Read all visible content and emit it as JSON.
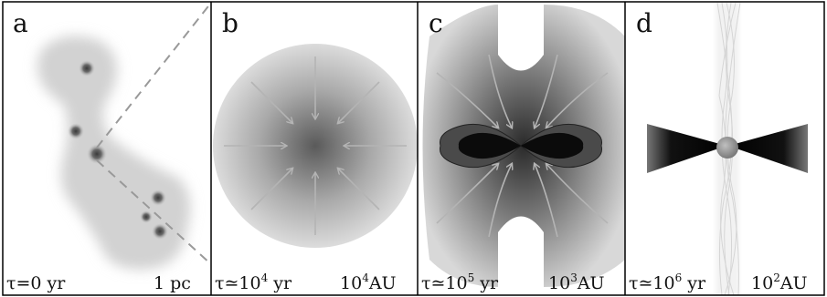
{
  "panels": [
    {
      "letter": "a",
      "time": "τ=0 yr",
      "scale": "1 pc"
    },
    {
      "letter": "b",
      "time_base": "τ≃10",
      "time_exp": "4",
      "time_unit": " yr",
      "scale_base": "10",
      "scale_exp": "4",
      "scale_unit": "AU"
    },
    {
      "letter": "c",
      "time_base": "τ≃10",
      "time_exp": "5",
      "time_unit": " yr",
      "scale_base": "10",
      "scale_exp": "3",
      "scale_unit": "AU"
    },
    {
      "letter": "d",
      "time_base": "τ≃10",
      "time_exp": "6",
      "time_unit": " yr",
      "scale_base": "10",
      "scale_exp": "2",
      "scale_unit": "AU"
    }
  ],
  "colors": {
    "frame": "#000000",
    "cloud": "#d6d6d6",
    "arrow": "#b4b4b4",
    "dashed": "#999999",
    "disk": "#111111",
    "star": "#9a9a9a"
  }
}
